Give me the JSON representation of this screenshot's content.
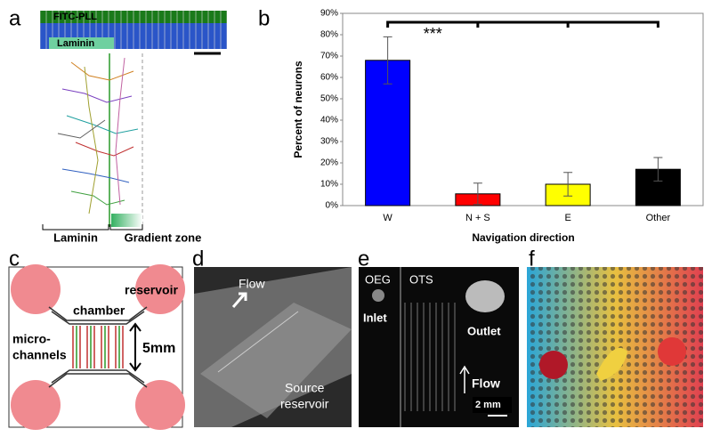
{
  "chart_data": {
    "type": "bar",
    "categories": [
      "W",
      "N + S",
      "E",
      "Other"
    ],
    "values": [
      68,
      5.5,
      10,
      17
    ],
    "errors": [
      11,
      5,
      5.5,
      5.5
    ],
    "colors": [
      "#0000ff",
      "#ff0000",
      "#ffff00",
      "#000000"
    ],
    "xlabel": "Navigation direction",
    "ylabel": "Percent of neurons",
    "annotation": "***",
    "ylim": [
      0,
      90
    ],
    "yticks": [
      {
        "value": 0,
        "label": "0%"
      },
      {
        "value": 10,
        "label": "10%"
      },
      {
        "value": 20,
        "label": "20%"
      },
      {
        "value": 30,
        "label": "30%"
      },
      {
        "value": 40,
        "label": "40%"
      },
      {
        "value": 50,
        "label": "50%"
      },
      {
        "value": 60,
        "label": "60%"
      },
      {
        "value": 70,
        "label": "70%"
      },
      {
        "value": 80,
        "label": "80%"
      },
      {
        "value": 90,
        "label": "90%"
      }
    ]
  },
  "panels": {
    "letters": [
      "a",
      "b",
      "c",
      "d",
      "e",
      "f"
    ],
    "a": {
      "top_strip": "FITC-PLL",
      "box": "Laminin",
      "left_zone": "Laminin",
      "right_zone": "Gradient zone"
    },
    "c": {
      "reservoir": "reservoir",
      "chamber": "chamber",
      "channels": [
        "micro-",
        "channels"
      ],
      "size": "5mm"
    },
    "d": {
      "flow": "Flow",
      "source": [
        "Source",
        "reservoir"
      ]
    },
    "e": {
      "left": "OEG",
      "right": "OTS",
      "inlet": "Inlet",
      "outlet": "Outlet",
      "flow": "Flow",
      "scale": "2 mm"
    }
  }
}
